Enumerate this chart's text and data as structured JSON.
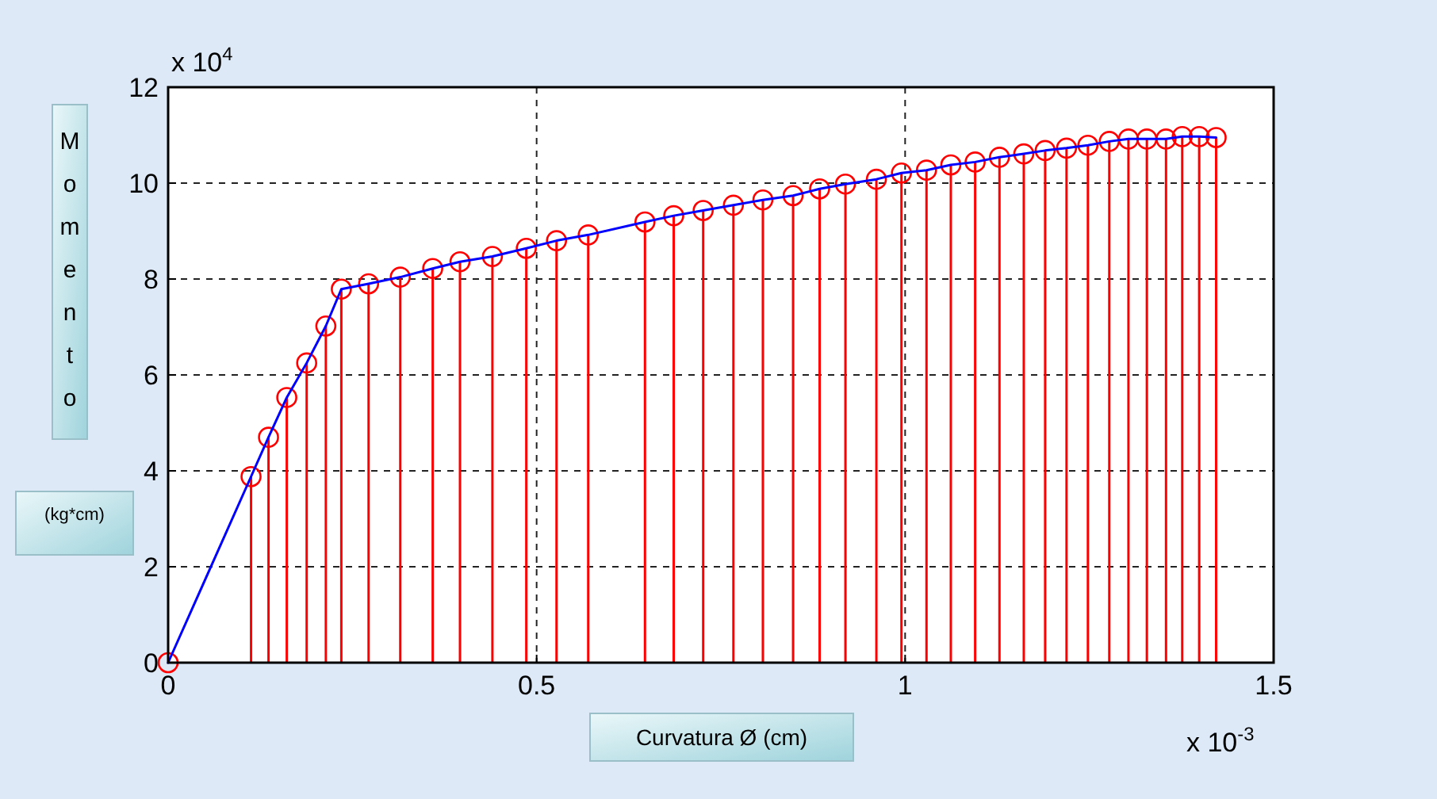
{
  "chart_data": {
    "type": "line",
    "xlabel": "Curvatura Ø (cm)",
    "ylabel": "Momento",
    "annotations": [
      "(kg*cm)",
      "x 10$^{4}$",
      "x 10$^{-3}$"
    ],
    "x": [
      0,
      0.1125,
      0.1362,
      0.161,
      0.188,
      0.214,
      0.235,
      0.272,
      0.315,
      0.359,
      0.396,
      0.44,
      0.486,
      0.527,
      0.57,
      0.647,
      0.686,
      0.726,
      0.767,
      0.807,
      0.848,
      0.884,
      0.919,
      0.961,
      0.995,
      1.029,
      1.062,
      1.095,
      1.128,
      1.161,
      1.19,
      1.219,
      1.248,
      1.277,
      1.303,
      1.328,
      1.354,
      1.376,
      1.399,
      1.422
    ],
    "series": [
      {
        "type": "lollipop",
        "color": "#ff0000",
        "marker": "circle",
        "values": [
          0,
          3.88,
          4.7,
          5.53,
          6.25,
          7.02,
          7.79,
          7.9,
          8.04,
          8.22,
          8.36,
          8.47,
          8.64,
          8.8,
          8.92,
          9.19,
          9.32,
          9.43,
          9.54,
          9.65,
          9.74,
          9.88,
          9.98,
          10.08,
          10.21,
          10.27,
          10.38,
          10.44,
          10.54,
          10.61,
          10.68,
          10.73,
          10.79,
          10.87,
          10.92,
          10.92,
          10.92,
          10.97,
          10.97,
          10.95
        ]
      },
      {
        "color": "#0000ff",
        "marker": "none",
        "line_style": "solid",
        "values": [
          0,
          3.88,
          4.7,
          5.53,
          6.25,
          7.02,
          7.79,
          7.9,
          8.04,
          8.22,
          8.36,
          8.47,
          8.64,
          8.8,
          8.92,
          9.19,
          9.32,
          9.43,
          9.54,
          9.65,
          9.74,
          9.88,
          9.98,
          10.08,
          10.21,
          10.27,
          10.38,
          10.44,
          10.54,
          10.61,
          10.68,
          10.73,
          10.79,
          10.87,
          10.92,
          10.92,
          10.92,
          10.97,
          10.97,
          10.95
        ]
      }
    ],
    "xlim": [
      0,
      1.5
    ],
    "xticks": [
      0,
      0.5,
      1,
      1.5
    ],
    "ylim": [
      0,
      12
    ],
    "yticks": [
      0,
      2,
      4,
      6,
      8,
      10,
      12
    ],
    "grid": true
  }
}
